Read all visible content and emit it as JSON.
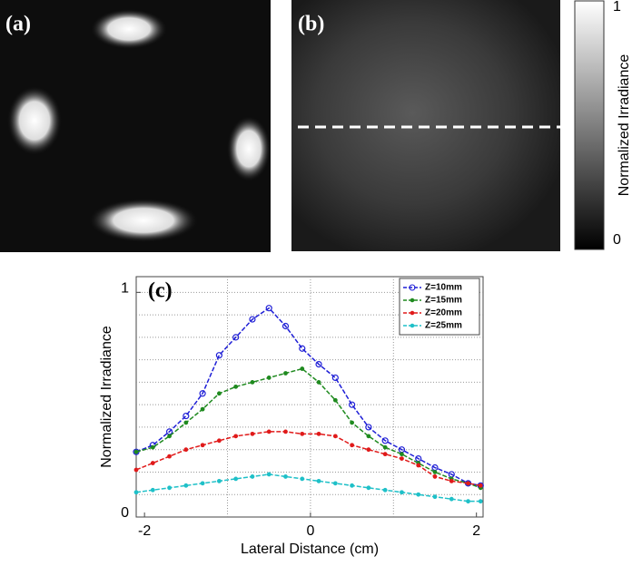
{
  "panels": {
    "a": "(a)",
    "b": "(b)"
  },
  "colorbar": {
    "label": "Normalized Irradiance",
    "ticks": [
      1,
      0
    ]
  },
  "chart_data": {
    "type": "line",
    "panel_label": "(c)",
    "x_label": "Lateral Distance (cm)",
    "y_label": "Normalized Irradiance",
    "x": [
      -2.1,
      -1.9,
      -1.7,
      -1.5,
      -1.3,
      -1.1,
      -0.9,
      -0.7,
      -0.5,
      -0.3,
      -0.1,
      0.1,
      0.3,
      0.5,
      0.7,
      0.9,
      1.1,
      1.3,
      1.5,
      1.7,
      1.9,
      2.05
    ],
    "series": [
      {
        "name": "Z=10mm",
        "color": "#1f1fd6",
        "marker": "circle",
        "values": [
          0.29,
          0.32,
          0.38,
          0.45,
          0.55,
          0.72,
          0.8,
          0.88,
          0.93,
          0.85,
          0.75,
          0.68,
          0.62,
          0.5,
          0.4,
          0.34,
          0.3,
          0.26,
          0.22,
          0.19,
          0.15,
          0.14
        ]
      },
      {
        "name": "Z=15mm",
        "color": "#1f8a1f",
        "marker": "dot",
        "values": [
          0.29,
          0.31,
          0.36,
          0.42,
          0.48,
          0.55,
          0.58,
          0.6,
          0.62,
          0.64,
          0.66,
          0.6,
          0.52,
          0.42,
          0.36,
          0.31,
          0.28,
          0.24,
          0.2,
          0.17,
          0.15,
          0.13
        ]
      },
      {
        "name": "Z=20mm",
        "color": "#e01a1a",
        "marker": "dot",
        "values": [
          0.21,
          0.24,
          0.27,
          0.3,
          0.32,
          0.34,
          0.36,
          0.37,
          0.38,
          0.38,
          0.37,
          0.37,
          0.36,
          0.32,
          0.3,
          0.28,
          0.26,
          0.23,
          0.18,
          0.16,
          0.15,
          0.14
        ]
      },
      {
        "name": "Z=25mm",
        "color": "#1fc0c8",
        "marker": "dot",
        "values": [
          0.11,
          0.12,
          0.13,
          0.14,
          0.15,
          0.16,
          0.17,
          0.18,
          0.19,
          0.18,
          0.17,
          0.16,
          0.15,
          0.14,
          0.13,
          0.12,
          0.11,
          0.1,
          0.09,
          0.08,
          0.07,
          0.07
        ]
      }
    ],
    "xlim": [
      -2.1,
      2.08
    ],
    "ylim": [
      0,
      1.07
    ],
    "xticks": [
      -2,
      0,
      2
    ],
    "yticks": [
      0,
      1
    ],
    "xgrid": [
      -1,
      0,
      1
    ],
    "ygrid": [
      0.1,
      0.2,
      0.3,
      0.4,
      0.5,
      0.6,
      0.7,
      0.8,
      0.9,
      1
    ],
    "legend": "upper right"
  }
}
